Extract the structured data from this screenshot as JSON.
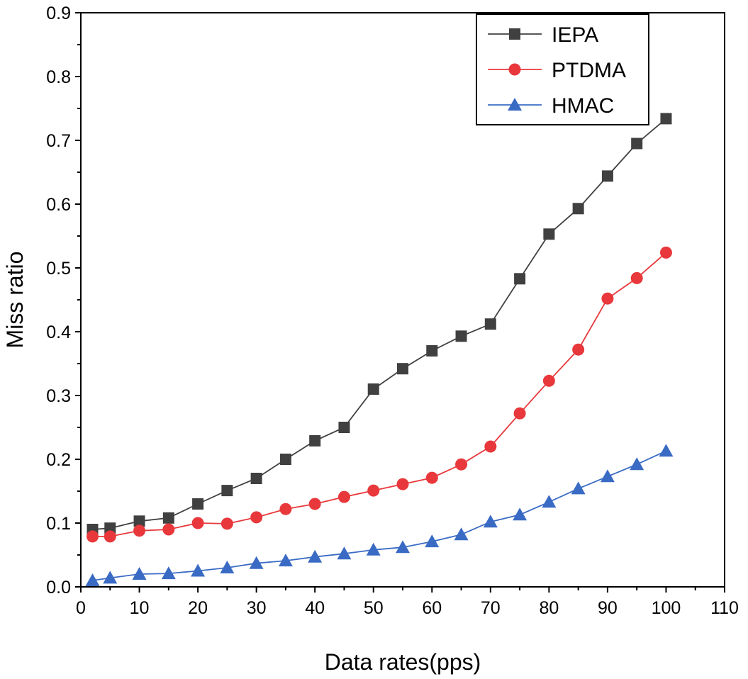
{
  "chart_data": {
    "type": "line",
    "title": "",
    "xlabel": "Data rates(pps)",
    "ylabel": "Miss ratio",
    "xlim": [
      0,
      110
    ],
    "ylim": [
      0,
      0.9
    ],
    "xticks": [
      0,
      10,
      20,
      30,
      40,
      50,
      60,
      70,
      80,
      90,
      100,
      110
    ],
    "yticks": [
      0.0,
      0.1,
      0.2,
      0.3,
      0.4,
      0.5,
      0.6,
      0.7,
      0.8,
      0.9
    ],
    "xtick_labels": [
      "0",
      "10",
      "20",
      "30",
      "40",
      "50",
      "60",
      "70",
      "80",
      "90",
      "100",
      "110"
    ],
    "ytick_labels": [
      "0.0",
      "0.1",
      "0.2",
      "0.3",
      "0.4",
      "0.5",
      "0.6",
      "0.7",
      "0.8",
      "0.9"
    ],
    "grid": false,
    "legend_position": "top-right",
    "x": [
      2,
      5,
      10,
      15,
      20,
      25,
      30,
      35,
      40,
      45,
      50,
      55,
      60,
      65,
      70,
      75,
      80,
      85,
      90,
      95,
      100
    ],
    "series": [
      {
        "name": "IEPA",
        "color": "#404040",
        "marker": "square",
        "values": [
          0.09,
          0.092,
          0.103,
          0.108,
          0.13,
          0.151,
          0.17,
          0.2,
          0.229,
          0.25,
          0.31,
          0.342,
          0.37,
          0.393,
          0.412,
          0.483,
          0.553,
          0.593,
          0.644,
          0.695,
          0.734
        ]
      },
      {
        "name": "PTDMA",
        "color": "#e8383b",
        "marker": "circle",
        "values": [
          0.079,
          0.079,
          0.088,
          0.09,
          0.1,
          0.099,
          0.109,
          0.122,
          0.13,
          0.141,
          0.151,
          0.161,
          0.171,
          0.192,
          0.22,
          0.272,
          0.323,
          0.372,
          0.452,
          0.484,
          0.524
        ]
      },
      {
        "name": "HMAC",
        "color": "#3a6bc4",
        "marker": "triangle",
        "values": [
          0.01,
          0.014,
          0.02,
          0.021,
          0.025,
          0.03,
          0.037,
          0.041,
          0.047,
          0.052,
          0.058,
          0.062,
          0.071,
          0.082,
          0.102,
          0.113,
          0.133,
          0.154,
          0.173,
          0.192,
          0.213
        ]
      }
    ]
  }
}
